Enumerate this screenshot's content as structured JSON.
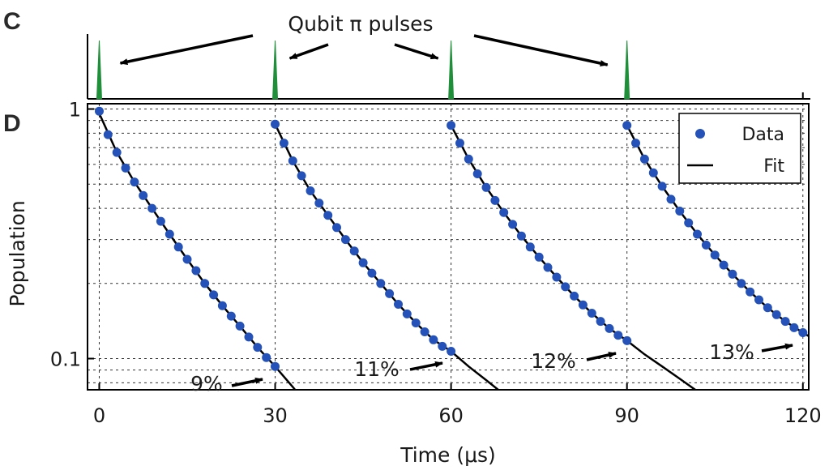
{
  "panels": {
    "pulse_letter": "C",
    "decay_letter": "D"
  },
  "colors": {
    "pulse": "#1f8f3a",
    "data": "#2452b8",
    "fit": "#000000",
    "grid": "#333333"
  },
  "chart_data": [
    {
      "type": "line",
      "panel": "C",
      "title": "Qubit π pulses",
      "pulse_times": [
        0,
        30,
        60,
        90
      ],
      "xlim": [
        -2,
        121
      ],
      "xlabel": "",
      "ylabel": ""
    },
    {
      "type": "scatter",
      "panel": "D",
      "xlabel": "Time (μs)",
      "ylabel": "Population",
      "xlim": [
        -2,
        121
      ],
      "ylim": [
        0.075,
        1.05
      ],
      "yscale": "log",
      "x_ticks": [
        "0",
        "30",
        "60",
        "90",
        "120"
      ],
      "y_ticks": [
        "1",
        "0.1"
      ],
      "grid": true,
      "legend": {
        "position": "top-right",
        "data_label": "Data",
        "fit_label": "Fit"
      },
      "series": [
        {
          "name": "Data",
          "segment": 1,
          "x": [
            0,
            1.5,
            3,
            4.5,
            6,
            7.5,
            9,
            10.5,
            12,
            13.5,
            15,
            16.5,
            18,
            19.5,
            21,
            22.5,
            24,
            25.5,
            27,
            28.5,
            30
          ],
          "y": [
            0.98,
            0.79,
            0.67,
            0.58,
            0.51,
            0.45,
            0.4,
            0.355,
            0.315,
            0.28,
            0.25,
            0.225,
            0.2,
            0.18,
            0.163,
            0.148,
            0.135,
            0.122,
            0.111,
            0.101,
            0.093
          ]
        },
        {
          "name": "Data",
          "segment": 2,
          "x": [
            30,
            31.5,
            33,
            34.5,
            36,
            37.5,
            39,
            40.5,
            42,
            43.5,
            45,
            46.5,
            48,
            49.5,
            51,
            52.5,
            54,
            55.5,
            57,
            58.5,
            60
          ],
          "y": [
            0.87,
            0.73,
            0.62,
            0.54,
            0.47,
            0.42,
            0.375,
            0.335,
            0.3,
            0.27,
            0.242,
            0.22,
            0.2,
            0.182,
            0.165,
            0.151,
            0.139,
            0.128,
            0.119,
            0.112,
            0.107
          ]
        },
        {
          "name": "Data",
          "segment": 3,
          "x": [
            60,
            61.5,
            63,
            64.5,
            66,
            67.5,
            69,
            70.5,
            72,
            73.5,
            75,
            76.5,
            78,
            79.5,
            81,
            82.5,
            84,
            85.5,
            87,
            88.5,
            90
          ],
          "y": [
            0.86,
            0.73,
            0.63,
            0.55,
            0.485,
            0.43,
            0.385,
            0.345,
            0.31,
            0.28,
            0.255,
            0.232,
            0.212,
            0.194,
            0.178,
            0.164,
            0.152,
            0.141,
            0.132,
            0.124,
            0.118
          ]
        },
        {
          "name": "Data",
          "segment": 4,
          "x": [
            90,
            91.5,
            93,
            94.5,
            96,
            97.5,
            99,
            100.5,
            102,
            103.5,
            105,
            106.5,
            108,
            109.5,
            111,
            112.5,
            114,
            115.5,
            117,
            118.5,
            120
          ],
          "y": [
            0.86,
            0.73,
            0.63,
            0.555,
            0.49,
            0.435,
            0.39,
            0.35,
            0.315,
            0.285,
            0.26,
            0.237,
            0.218,
            0.2,
            0.185,
            0.172,
            0.16,
            0.15,
            0.141,
            0.133,
            0.127
          ]
        }
      ],
      "fits": [
        {
          "x": [
            0,
            3,
            6,
            9,
            12,
            15,
            18,
            21,
            24,
            27,
            30,
            33,
            34
          ],
          "y": [
            0.96,
            0.67,
            0.51,
            0.4,
            0.315,
            0.25,
            0.2,
            0.163,
            0.135,
            0.111,
            0.093,
            0.077,
            0.072
          ]
        },
        {
          "x": [
            30,
            33,
            36,
            39,
            42,
            45,
            48,
            51,
            54,
            57,
            60,
            63,
            66,
            69
          ],
          "y": [
            0.87,
            0.62,
            0.47,
            0.375,
            0.3,
            0.242,
            0.2,
            0.165,
            0.139,
            0.119,
            0.107,
            0.093,
            0.082,
            0.072
          ]
        },
        {
          "x": [
            60,
            63,
            66,
            69,
            72,
            75,
            78,
            81,
            84,
            87,
            90,
            93,
            96,
            99,
            102,
            103
          ],
          "y": [
            0.86,
            0.63,
            0.485,
            0.385,
            0.31,
            0.255,
            0.212,
            0.178,
            0.152,
            0.132,
            0.118,
            0.104,
            0.093,
            0.083,
            0.074,
            0.072
          ]
        },
        {
          "x": [
            90,
            93,
            96,
            99,
            102,
            105,
            108,
            111,
            114,
            117,
            120,
            121
          ],
          "y": [
            0.86,
            0.63,
            0.49,
            0.39,
            0.315,
            0.26,
            0.218,
            0.185,
            0.16,
            0.141,
            0.127,
            0.123
          ]
        }
      ],
      "annotations": [
        {
          "text": "9%",
          "x": 30,
          "y": 0.093
        },
        {
          "text": "11%",
          "x": 60,
          "y": 0.107
        },
        {
          "text": "12%",
          "x": 90,
          "y": 0.118
        },
        {
          "text": "13%",
          "x": 120,
          "y": 0.127
        }
      ]
    }
  ]
}
